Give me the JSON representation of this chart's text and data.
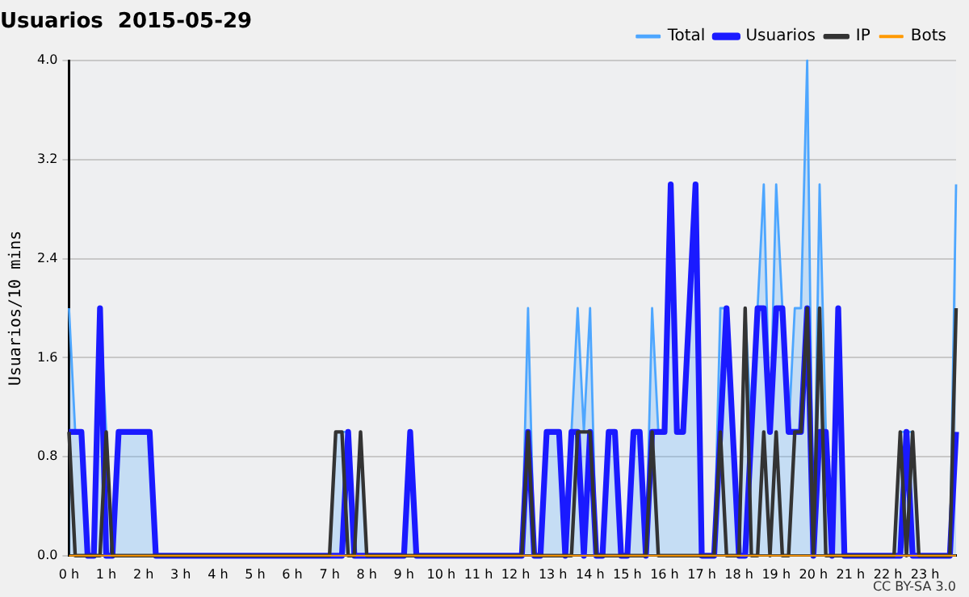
{
  "chart_data": {
    "type": "line",
    "title": "Usuarios  2015-05-29",
    "ylabel": "Usuarios/10 mins",
    "categories": [
      "0 h",
      null,
      null,
      null,
      null,
      null,
      "1 h",
      null,
      null,
      null,
      null,
      null,
      "2 h",
      null,
      null,
      null,
      null,
      null,
      "3 h",
      null,
      null,
      null,
      null,
      null,
      "4 h",
      null,
      null,
      null,
      null,
      null,
      "5 h",
      null,
      null,
      null,
      null,
      null,
      "6 h",
      null,
      null,
      null,
      null,
      null,
      "7 h",
      null,
      null,
      null,
      null,
      null,
      "8 h",
      null,
      null,
      null,
      null,
      null,
      "9 h",
      null,
      null,
      null,
      null,
      null,
      "10 h",
      null,
      null,
      null,
      null,
      null,
      "11 h",
      null,
      null,
      null,
      null,
      null,
      "12 h",
      null,
      null,
      null,
      null,
      null,
      "13 h",
      null,
      null,
      null,
      null,
      null,
      "14 h",
      null,
      null,
      null,
      null,
      null,
      "15 h",
      null,
      null,
      null,
      null,
      null,
      "16 h",
      null,
      null,
      null,
      null,
      null,
      "17 h",
      null,
      null,
      null,
      null,
      null,
      "18 h",
      null,
      null,
      null,
      null,
      null,
      "19 h",
      null,
      null,
      null,
      null,
      null,
      "20 h",
      null,
      null,
      null,
      null,
      null,
      "21 h",
      null,
      null,
      null,
      null,
      null,
      "22 h",
      null,
      null,
      null,
      null,
      null,
      "23 h",
      null,
      null,
      null,
      null,
      null
    ],
    "series": [
      {
        "name": "Total",
        "type": "area",
        "color": "#4da6ff",
        "values": [
          2,
          1,
          1,
          0,
          0,
          2,
          1,
          0,
          1,
          1,
          1,
          1,
          1,
          1,
          0,
          0,
          0,
          0,
          0,
          0,
          0,
          0,
          0,
          0,
          0,
          0,
          0,
          0,
          0,
          0,
          0,
          0,
          0,
          0,
          0,
          0,
          0,
          0,
          0,
          0,
          0,
          0,
          0,
          1,
          1,
          1,
          0,
          1,
          0,
          0,
          0,
          0,
          0,
          0,
          0,
          1,
          0,
          0,
          0,
          0,
          0,
          0,
          0,
          0,
          0,
          0,
          0,
          0,
          0,
          0,
          0,
          0,
          0,
          0,
          2,
          0,
          0,
          1,
          1,
          1,
          0,
          1,
          2,
          1,
          2,
          0,
          0,
          1,
          1,
          0,
          0,
          1,
          1,
          0,
          2,
          1,
          1,
          3,
          1,
          1,
          2,
          3,
          0,
          0,
          0,
          2,
          2,
          1,
          0,
          2,
          1,
          2,
          3,
          1,
          3,
          2,
          1,
          2,
          2,
          4,
          0,
          3,
          1,
          0,
          2,
          0,
          0,
          0,
          0,
          0,
          0,
          0,
          0,
          0,
          1,
          1,
          1,
          0,
          0,
          0,
          0,
          0,
          0,
          3
        ]
      },
      {
        "name": "Usuarios",
        "color": "#1a1aff",
        "values": [
          1,
          1,
          1,
          0,
          0,
          2,
          0,
          0,
          1,
          1,
          1,
          1,
          1,
          1,
          0,
          0,
          0,
          0,
          0,
          0,
          0,
          0,
          0,
          0,
          0,
          0,
          0,
          0,
          0,
          0,
          0,
          0,
          0,
          0,
          0,
          0,
          0,
          0,
          0,
          0,
          0,
          0,
          0,
          0,
          0,
          1,
          0,
          0,
          0,
          0,
          0,
          0,
          0,
          0,
          0,
          1,
          0,
          0,
          0,
          0,
          0,
          0,
          0,
          0,
          0,
          0,
          0,
          0,
          0,
          0,
          0,
          0,
          0,
          0,
          1,
          0,
          0,
          1,
          1,
          1,
          0,
          1,
          1,
          0,
          1,
          0,
          0,
          1,
          1,
          0,
          0,
          1,
          1,
          0,
          1,
          1,
          1,
          3,
          1,
          1,
          2,
          3,
          0,
          0,
          0,
          1,
          2,
          1,
          0,
          0,
          1,
          2,
          2,
          1,
          2,
          2,
          1,
          1,
          1,
          2,
          0,
          1,
          1,
          0,
          2,
          0,
          0,
          0,
          0,
          0,
          0,
          0,
          0,
          0,
          0,
          1,
          0,
          0,
          0,
          0,
          0,
          0,
          0,
          1
        ]
      },
      {
        "name": "IP",
        "color": "#333333",
        "values": [
          1,
          0,
          0,
          0,
          0,
          0,
          1,
          0,
          0,
          0,
          0,
          0,
          0,
          0,
          0,
          0,
          0,
          0,
          0,
          0,
          0,
          0,
          0,
          0,
          0,
          0,
          0,
          0,
          0,
          0,
          0,
          0,
          0,
          0,
          0,
          0,
          0,
          0,
          0,
          0,
          0,
          0,
          0,
          1,
          1,
          0,
          0,
          1,
          0,
          0,
          0,
          0,
          0,
          0,
          0,
          0,
          0,
          0,
          0,
          0,
          0,
          0,
          0,
          0,
          0,
          0,
          0,
          0,
          0,
          0,
          0,
          0,
          0,
          0,
          1,
          0,
          0,
          0,
          0,
          0,
          0,
          0,
          1,
          1,
          1,
          0,
          0,
          0,
          0,
          0,
          0,
          0,
          0,
          0,
          1,
          0,
          0,
          0,
          0,
          0,
          0,
          0,
          0,
          0,
          0,
          1,
          0,
          0,
          0,
          2,
          0,
          0,
          1,
          0,
          1,
          0,
          0,
          1,
          1,
          2,
          0,
          2,
          0,
          0,
          0,
          0,
          0,
          0,
          0,
          0,
          0,
          0,
          0,
          0,
          1,
          0,
          1,
          0,
          0,
          0,
          0,
          0,
          0,
          2
        ]
      },
      {
        "name": "Bots",
        "color": "#ff9900",
        "values": [
          0,
          0,
          0,
          0,
          0,
          0,
          0,
          0,
          0,
          0,
          0,
          0,
          0,
          0,
          0,
          0,
          0,
          0,
          0,
          0,
          0,
          0,
          0,
          0,
          0,
          0,
          0,
          0,
          0,
          0,
          0,
          0,
          0,
          0,
          0,
          0,
          0,
          0,
          0,
          0,
          0,
          0,
          0,
          0,
          0,
          0,
          0,
          0,
          0,
          0,
          0,
          0,
          0,
          0,
          0,
          0,
          0,
          0,
          0,
          0,
          0,
          0,
          0,
          0,
          0,
          0,
          0,
          0,
          0,
          0,
          0,
          0,
          0,
          0,
          0,
          0,
          0,
          0,
          0,
          0,
          0,
          0,
          0,
          0,
          0,
          0,
          0,
          0,
          0,
          0,
          0,
          0,
          0,
          0,
          0,
          0,
          0,
          0,
          0,
          0,
          0,
          0,
          0,
          0,
          0,
          0,
          0,
          0,
          0,
          0,
          0,
          0,
          0,
          0,
          0,
          0,
          0,
          0,
          0,
          0,
          0,
          0,
          0,
          0,
          0,
          0,
          0,
          0,
          0,
          0,
          0,
          0,
          0,
          0,
          0,
          0,
          0,
          0,
          0,
          0,
          0,
          0,
          0,
          0
        ]
      }
    ],
    "ylim": [
      0,
      4
    ],
    "yticks": [
      {
        "value": 0,
        "label": "0.0"
      },
      0.8,
      1.6,
      2.4,
      3.2,
      {
        "value": 4,
        "label": "4.0"
      }
    ],
    "grid": "y",
    "legend": "top right",
    "marker": "none",
    "line_style": "solid",
    "annotations": [
      "CC BY-SA 3.0"
    ]
  }
}
